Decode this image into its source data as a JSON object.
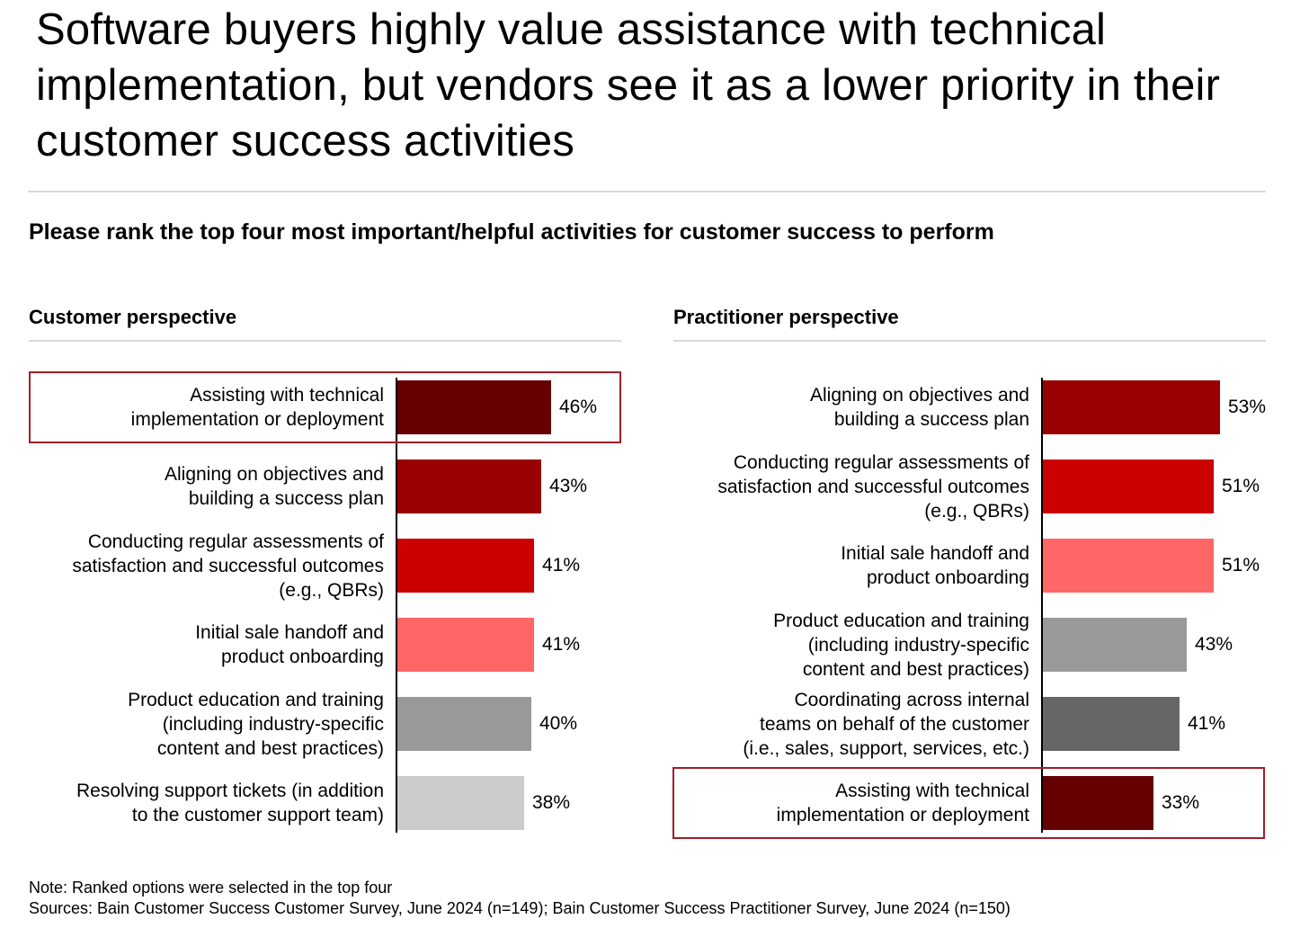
{
  "title": "Software buyers highly value assistance with technical implementation, but vendors see it as a lower priority in their customer success activities",
  "question": "Please rank the top four most important/helpful activities for customer success to perform",
  "chart_data": [
    {
      "type": "bar",
      "orientation": "horizontal",
      "title": "Customer perspective",
      "value_suffix": "%",
      "xlim": [
        0,
        53
      ],
      "highlighted": "Assisting with technical implementation or deployment",
      "items": [
        {
          "label": "Assisting with technical implementation or deployment",
          "lines": [
            "Assisting with technical",
            "implementation or deployment"
          ],
          "value": 46,
          "value_label": "46%",
          "color": "#660000"
        },
        {
          "label": "Aligning on objectives and building a success plan",
          "lines": [
            "Aligning on objectives and",
            "building a success plan"
          ],
          "value": 43,
          "value_label": "43%",
          "color": "#990000"
        },
        {
          "label": "Conducting regular assessments of satisfaction and successful outcomes (e.g., QBRs)",
          "lines": [
            "Conducting regular assessments of",
            "satisfaction and successful outcomes",
            "(e.g., QBRs)"
          ],
          "value": 41,
          "value_label": "41%",
          "color": "#cc0000"
        },
        {
          "label": "Initial sale handoff and product onboarding",
          "lines": [
            "Initial sale handoff and",
            "product onboarding"
          ],
          "value": 41,
          "value_label": "41%",
          "color": "#ff6666"
        },
        {
          "label": "Product education and training (including industry-specific content and best practices)",
          "lines": [
            "Product education and training",
            "(including industry-specific",
            "content and best practices)"
          ],
          "value": 40,
          "value_label": "40%",
          "color": "#999999"
        },
        {
          "label": "Resolving support tickets (in addition to the customer support team)",
          "lines": [
            "Resolving support tickets (in addition",
            "to the customer support team)"
          ],
          "value": 38,
          "value_label": "38%",
          "color": "#cccccc"
        }
      ]
    },
    {
      "type": "bar",
      "orientation": "horizontal",
      "title": "Practitioner perspective",
      "value_suffix": "%",
      "xlim": [
        0,
        53
      ],
      "highlighted": "Assisting with technical implementation or deployment",
      "items": [
        {
          "label": "Aligning on objectives and building a success plan",
          "lines": [
            "Aligning on objectives and",
            "building a success plan"
          ],
          "value": 53,
          "value_label": "53%",
          "color": "#990000"
        },
        {
          "label": "Conducting regular assessments of satisfaction and successful outcomes (e.g., QBRs)",
          "lines": [
            "Conducting regular assessments of",
            "satisfaction and successful outcomes",
            "(e.g., QBRs)"
          ],
          "value": 51,
          "value_label": "51%",
          "color": "#cc0000"
        },
        {
          "label": "Initial sale handoff and product onboarding",
          "lines": [
            "Initial sale handoff and",
            "product onboarding"
          ],
          "value": 51,
          "value_label": "51%",
          "color": "#ff6666"
        },
        {
          "label": "Product education and training (including industry-specific content and best practices)",
          "lines": [
            "Product education and training",
            "(including industry-specific",
            "content and best practices)"
          ],
          "value": 43,
          "value_label": "43%",
          "color": "#999999"
        },
        {
          "label": "Coordinating across internal teams on behalf of the customer (i.e., sales, support, services, etc.)",
          "lines": [
            "Coordinating across internal",
            "teams on behalf of the customer",
            "(i.e., sales, support, services, etc.)"
          ],
          "value": 41,
          "value_label": "41%",
          "color": "#666666"
        },
        {
          "label": "Assisting with technical implementation or deployment",
          "lines": [
            "Assisting with technical",
            "implementation or deployment"
          ],
          "value": 33,
          "value_label": "33%",
          "color": "#660000"
        }
      ]
    }
  ],
  "footer": {
    "note": "Note: Ranked options were selected in the top four",
    "sources": "Sources: Bain Customer Success Customer Survey, June 2024 (n=149); Bain Customer Success Practitioner Survey, June 2024 (n=150)"
  }
}
